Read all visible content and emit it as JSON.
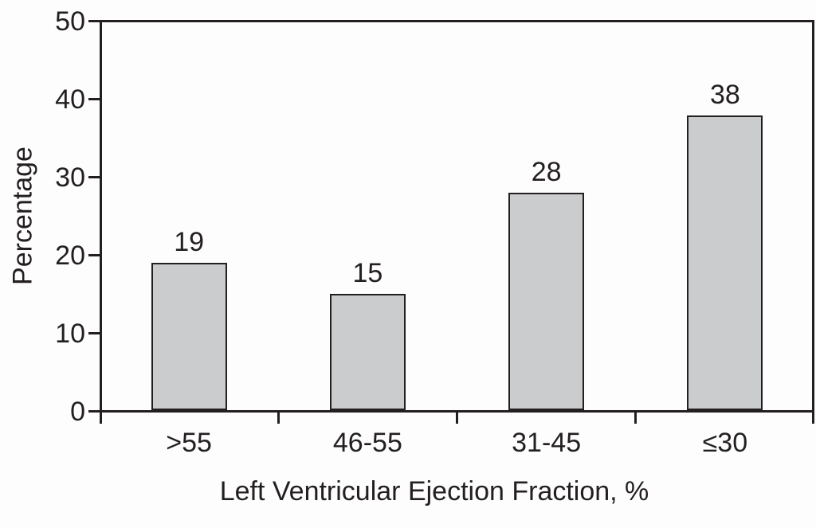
{
  "figure": {
    "background": "#fdfdfd"
  },
  "chart_data": {
    "type": "bar",
    "title": "",
    "categories": [
      ">55",
      "46-55",
      "31-45",
      "≤30"
    ],
    "values": [
      19,
      15,
      28,
      38
    ],
    "bar_labels": [
      "19",
      "15",
      "28",
      "38"
    ],
    "xlabel": "Left Ventricular Ejection Fraction, %",
    "ylabel": "Percentage",
    "ylim": [
      0,
      50
    ],
    "yticks": [
      0,
      10,
      20,
      30,
      40,
      50
    ],
    "grid": false,
    "legend": null,
    "colors": {
      "bar_fill": "#cacccd",
      "bar_border": "#231f20",
      "axis": "#231f20",
      "text": "#231f20",
      "background": "#fdfdfd"
    }
  }
}
